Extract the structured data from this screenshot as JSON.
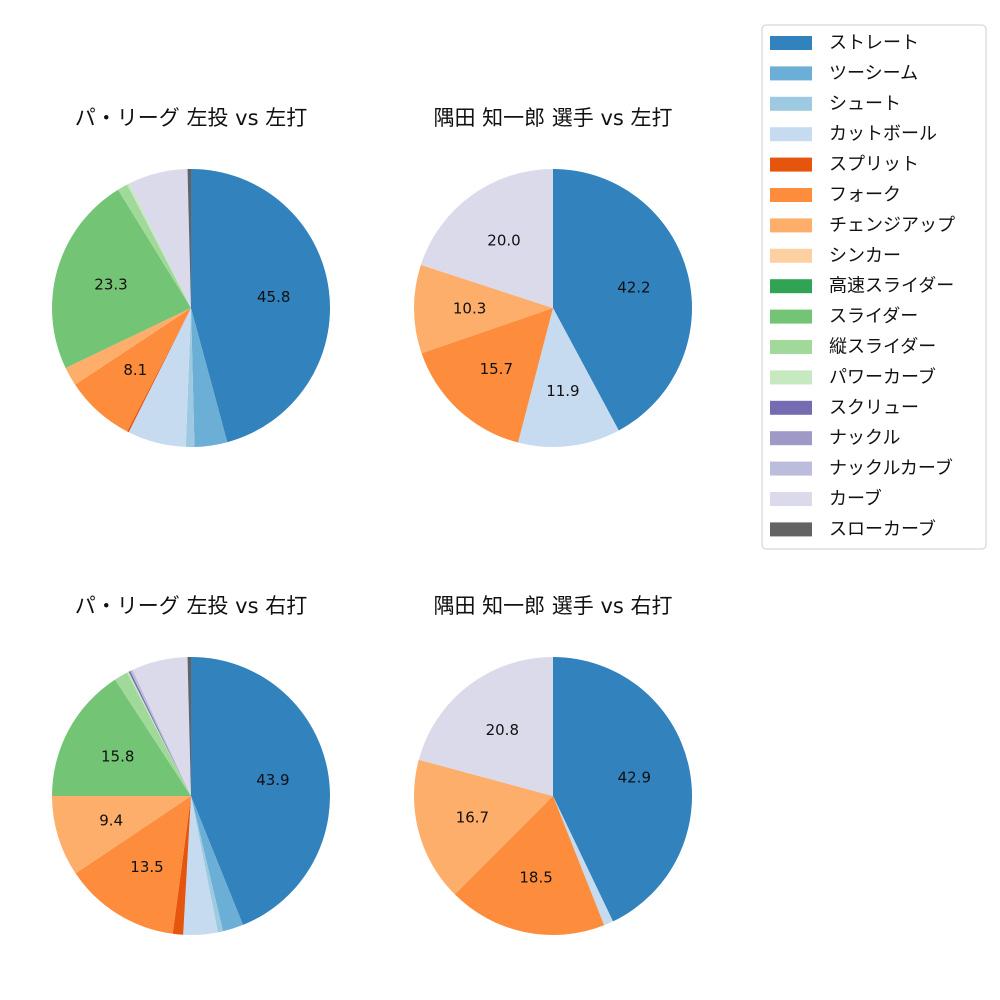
{
  "legend": {
    "items": [
      {
        "name": "ストレート",
        "color": "#3182bd"
      },
      {
        "name": "ツーシーム",
        "color": "#6baed6"
      },
      {
        "name": "シュート",
        "color": "#9ecae1"
      },
      {
        "name": "カットボール",
        "color": "#c6dbef"
      },
      {
        "name": "スプリット",
        "color": "#e6550d"
      },
      {
        "name": "フォーク",
        "color": "#fd8d3c"
      },
      {
        "name": "チェンジアップ",
        "color": "#fdae6b"
      },
      {
        "name": "シンカー",
        "color": "#fdd0a2"
      },
      {
        "name": "高速スライダー",
        "color": "#31a354"
      },
      {
        "name": "スライダー",
        "color": "#74c476"
      },
      {
        "name": "縦スライダー",
        "color": "#a1d99b"
      },
      {
        "name": "パワーカーブ",
        "color": "#c7e9c0"
      },
      {
        "name": "スクリュー",
        "color": "#756bb1"
      },
      {
        "name": "ナックル",
        "color": "#9e9ac8"
      },
      {
        "name": "ナックルカーブ",
        "color": "#bcbddc"
      },
      {
        "name": "カーブ",
        "color": "#dadaeb"
      },
      {
        "name": "スローカーブ",
        "color": "#636363"
      }
    ]
  },
  "chart_data": [
    {
      "type": "pie",
      "title": "パ・リーグ 左投 vs 左打",
      "slices": [
        {
          "label": "ストレート",
          "value": 45.8,
          "shown": "45.8"
        },
        {
          "label": "ツーシーム",
          "value": 3.8,
          "shown": ""
        },
        {
          "label": "シュート",
          "value": 1.0,
          "shown": ""
        },
        {
          "label": "カットボール",
          "value": 6.8,
          "shown": ""
        },
        {
          "label": "スプリット",
          "value": 0.2,
          "shown": ""
        },
        {
          "label": "フォーク",
          "value": 8.1,
          "shown": "8.1"
        },
        {
          "label": "チェンジアップ",
          "value": 2.2,
          "shown": ""
        },
        {
          "label": "スライダー",
          "value": 23.3,
          "shown": "23.3"
        },
        {
          "label": "縦スライダー",
          "value": 1.2,
          "shown": ""
        },
        {
          "label": "パワーカーブ",
          "value": 0.3,
          "shown": ""
        },
        {
          "label": "カーブ",
          "value": 6.9,
          "shown": ""
        },
        {
          "label": "スローカーブ",
          "value": 0.4,
          "shown": ""
        }
      ]
    },
    {
      "type": "pie",
      "title": "隅田 知一郎 選手 vs 左打",
      "slices": [
        {
          "label": "ストレート",
          "value": 42.2,
          "shown": "42.2"
        },
        {
          "label": "カットボール",
          "value": 11.9,
          "shown": "11.9"
        },
        {
          "label": "フォーク",
          "value": 15.7,
          "shown": "15.7"
        },
        {
          "label": "チェンジアップ",
          "value": 10.3,
          "shown": "10.3"
        },
        {
          "label": "カーブ",
          "value": 20.0,
          "shown": "20.0"
        }
      ]
    },
    {
      "type": "pie",
      "title": "パ・リーグ 左投 vs 右打",
      "slices": [
        {
          "label": "ストレート",
          "value": 43.9,
          "shown": "43.9"
        },
        {
          "label": "ツーシーム",
          "value": 2.4,
          "shown": ""
        },
        {
          "label": "シュート",
          "value": 0.6,
          "shown": ""
        },
        {
          "label": "カットボール",
          "value": 4.0,
          "shown": ""
        },
        {
          "label": "スプリット",
          "value": 1.2,
          "shown": ""
        },
        {
          "label": "フォーク",
          "value": 13.5,
          "shown": "13.5"
        },
        {
          "label": "チェンジアップ",
          "value": 9.4,
          "shown": "9.4"
        },
        {
          "label": "スライダー",
          "value": 15.8,
          "shown": "15.8"
        },
        {
          "label": "縦スライダー",
          "value": 1.6,
          "shown": ""
        },
        {
          "label": "パワーカーブ",
          "value": 0.2,
          "shown": ""
        },
        {
          "label": "スクリュー",
          "value": 0.2,
          "shown": ""
        },
        {
          "label": "ナックルカーブ",
          "value": 0.3,
          "shown": ""
        },
        {
          "label": "カーブ",
          "value": 6.5,
          "shown": ""
        },
        {
          "label": "スローカーブ",
          "value": 0.4,
          "shown": ""
        }
      ]
    },
    {
      "type": "pie",
      "title": "隅田 知一郎 選手 vs 右打",
      "slices": [
        {
          "label": "ストレート",
          "value": 42.9,
          "shown": "42.9"
        },
        {
          "label": "カットボール",
          "value": 1.1,
          "shown": ""
        },
        {
          "label": "フォーク",
          "value": 18.5,
          "shown": "18.5"
        },
        {
          "label": "チェンジアップ",
          "value": 16.7,
          "shown": "16.7"
        },
        {
          "label": "カーブ",
          "value": 20.8,
          "shown": "20.8"
        }
      ]
    }
  ]
}
